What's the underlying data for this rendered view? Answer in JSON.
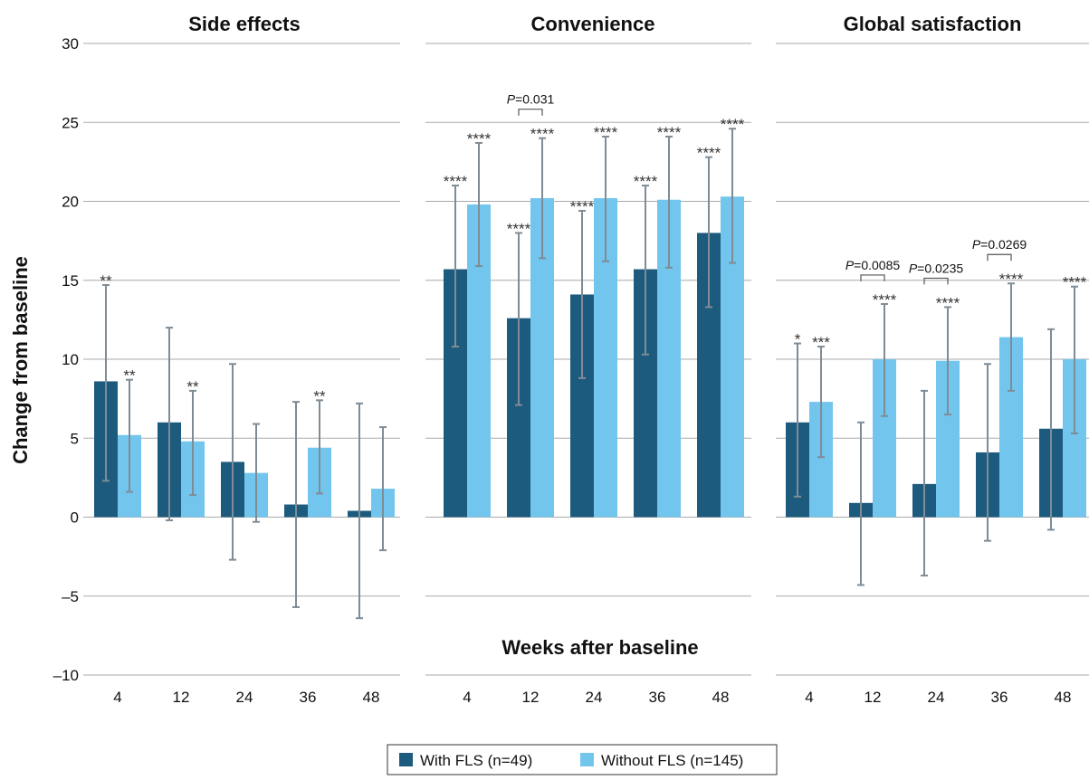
{
  "chart_data": {
    "type": "bar",
    "xlabel": "Weeks after baseline",
    "ylabel": "Change from baseline",
    "ylim": [
      -10,
      30
    ],
    "yticks": [
      30,
      25,
      20,
      15,
      10,
      5,
      0,
      -5,
      -10
    ],
    "ytick_labels": [
      "30",
      "25",
      "20",
      "15",
      "10",
      "5",
      "0",
      "–5",
      "–10"
    ],
    "categories": [
      "4",
      "12",
      "24",
      "36",
      "48"
    ],
    "grid": true,
    "legend_position": "bottom-center",
    "colors": {
      "with_fls": "#1d5b7e",
      "without_fls": "#72c5ec",
      "error_bar": "#7f8c96",
      "grid": "#aaaaaa"
    },
    "series_names": [
      "With FLS (n=49)",
      "Without FLS (n=145)"
    ],
    "panels": [
      {
        "title": "Side effects",
        "series": [
          {
            "name": "With FLS (n=49)",
            "values": [
              8.6,
              6.0,
              3.5,
              0.8,
              0.4
            ],
            "err_low": [
              2.3,
              -0.2,
              -2.7,
              -5.7,
              -6.4
            ],
            "err_high": [
              14.7,
              12.0,
              9.7,
              7.3,
              7.2
            ],
            "sig": [
              "**",
              "",
              "",
              "",
              ""
            ]
          },
          {
            "name": "Without FLS (n=145)",
            "values": [
              5.2,
              4.8,
              2.8,
              4.4,
              1.8
            ],
            "err_low": [
              1.6,
              1.4,
              -0.3,
              1.5,
              -2.1
            ],
            "err_high": [
              8.7,
              8.0,
              5.9,
              7.4,
              5.7
            ],
            "sig": [
              "**",
              "**",
              "",
              "**",
              ""
            ]
          }
        ],
        "comparisons": []
      },
      {
        "title": "Convenience",
        "series": [
          {
            "name": "With FLS (n=49)",
            "values": [
              15.7,
              12.6,
              14.1,
              15.7,
              18.0
            ],
            "err_low": [
              10.8,
              7.1,
              8.8,
              10.3,
              13.3
            ],
            "err_high": [
              21.0,
              18.0,
              19.4,
              21.0,
              22.8
            ],
            "sig": [
              "****",
              "****",
              "****",
              "****",
              "****"
            ]
          },
          {
            "name": "Without FLS (n=145)",
            "values": [
              19.8,
              20.2,
              20.2,
              20.1,
              20.3
            ],
            "err_low": [
              15.9,
              16.4,
              16.2,
              15.8,
              16.1
            ],
            "err_high": [
              23.7,
              24.0,
              24.1,
              24.1,
              24.6
            ],
            "sig": [
              "****",
              "****",
              "****",
              "****",
              "****"
            ]
          }
        ],
        "comparisons": [
          {
            "category": "12",
            "label": "P=0.031"
          }
        ]
      },
      {
        "title": "Global satisfaction",
        "series": [
          {
            "name": "With FLS (n=49)",
            "values": [
              6.0,
              0.9,
              2.1,
              4.1,
              5.6
            ],
            "err_low": [
              1.3,
              -4.3,
              -3.7,
              -1.5,
              -0.8
            ],
            "err_high": [
              11.0,
              6.0,
              8.0,
              9.7,
              11.9
            ],
            "sig": [
              "*",
              "",
              "",
              "",
              ""
            ]
          },
          {
            "name": "Without FLS (n=145)",
            "values": [
              7.3,
              10.0,
              9.9,
              11.4,
              10.0
            ],
            "err_low": [
              3.8,
              6.4,
              6.5,
              8.0,
              5.3
            ],
            "err_high": [
              10.8,
              13.5,
              13.3,
              14.8,
              14.6
            ],
            "sig": [
              "***",
              "****",
              "****",
              "****",
              "****"
            ]
          }
        ],
        "comparisons": [
          {
            "category": "12",
            "label": "P=0.0085"
          },
          {
            "category": "24",
            "label": "P=0.0235"
          },
          {
            "category": "36",
            "label": "P=0.0269"
          }
        ]
      }
    ]
  }
}
